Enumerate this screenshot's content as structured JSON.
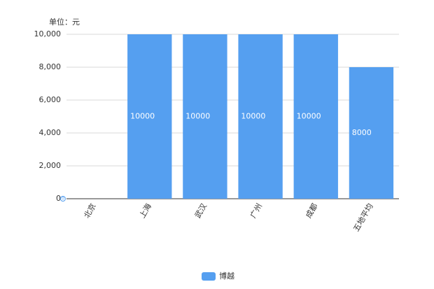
{
  "chart_data": {
    "type": "bar",
    "unit_label": "单位：元",
    "categories": [
      "北京",
      "上海",
      "武汉",
      "广州",
      "成都",
      "五地平均"
    ],
    "series": [
      {
        "name": "博越",
        "color": "#559ff0",
        "values": [
          0,
          10000,
          10000,
          10000,
          10000,
          8000
        ]
      }
    ],
    "ylim": [
      0,
      10000
    ],
    "yticks": [
      0,
      {
        "value": 2000,
        "label": "2,000"
      },
      {
        "value": 4000,
        "label": "4,000"
      },
      {
        "value": 6000,
        "label": "6,000"
      },
      {
        "value": 8000,
        "label": "8,000"
      },
      {
        "value": 10000,
        "label": "10,000"
      }
    ],
    "grid": true
  }
}
